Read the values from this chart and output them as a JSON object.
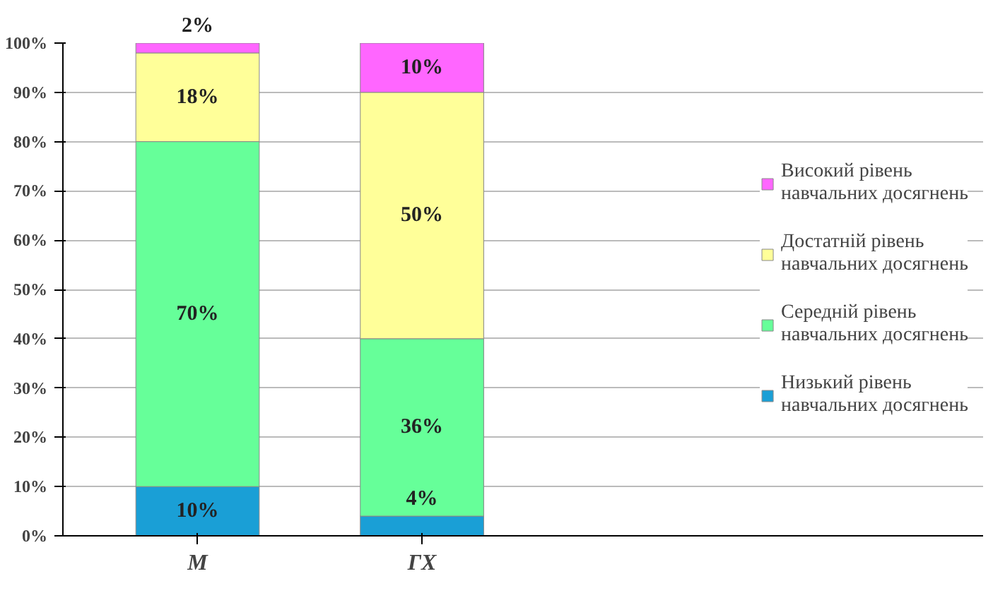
{
  "chart_data": {
    "type": "bar",
    "stacked": true,
    "categories": [
      "М",
      "ГХ"
    ],
    "series": [
      {
        "name": "Низький рівень\nнавчальних досягнень",
        "color": "#1a9fd6",
        "values": [
          10,
          4
        ],
        "value_labels": [
          "10%",
          "4%"
        ]
      },
      {
        "name": "Середній рівень\nнавчальних досягнень",
        "color": "#66ff99",
        "values": [
          70,
          36
        ],
        "value_labels": [
          "70%",
          "36%"
        ]
      },
      {
        "name": "Достатній рівень\nнавчальних досягнень",
        "color": "#ffff99",
        "values": [
          18,
          50
        ],
        "value_labels": [
          "18%",
          "50%"
        ]
      },
      {
        "name": "Високий рівень\nнавчальних досягнень",
        "color": "#ff66ff",
        "values": [
          2,
          10
        ],
        "value_labels": [
          "2%",
          "10%"
        ]
      }
    ],
    "ylim": [
      0,
      100
    ],
    "yticks": [
      {
        "value": 0,
        "label": "0%"
      },
      {
        "value": 10,
        "label": "10%"
      },
      {
        "value": 20,
        "label": "20%"
      },
      {
        "value": 30,
        "label": "30%"
      },
      {
        "value": 40,
        "label": "40%"
      },
      {
        "value": 50,
        "label": "50%"
      },
      {
        "value": 60,
        "label": "60%"
      },
      {
        "value": 70,
        "label": "70%"
      },
      {
        "value": 80,
        "label": "80%"
      },
      {
        "value": 90,
        "label": "90%"
      },
      {
        "value": 100,
        "label": "100%"
      }
    ],
    "grid": "y",
    "legend": "right"
  }
}
